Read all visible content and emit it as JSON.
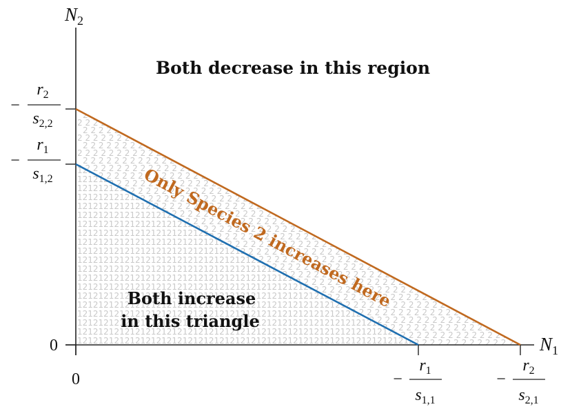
{
  "axes": {
    "x_label": "N",
    "x_label_sub": "1",
    "y_label": "N",
    "y_label_sub": "2"
  },
  "ticks": {
    "origin_x": "0",
    "origin_y": "0",
    "y_upper": {
      "sign": "−",
      "num": "r",
      "num_sub": "2",
      "den": "s",
      "den_sub": "2,2"
    },
    "y_lower": {
      "sign": "−",
      "num": "r",
      "num_sub": "1",
      "den": "s",
      "den_sub": "1,2"
    },
    "x_near": {
      "sign": "−",
      "num": "r",
      "num_sub": "1",
      "den": "s",
      "den_sub": "1,1"
    },
    "x_far": {
      "sign": "−",
      "num": "r",
      "num_sub": "2",
      "den": "s",
      "den_sub": "2,1"
    }
  },
  "regions": {
    "top": "Both decrease in this region",
    "middle": "Only Species 2 increases here",
    "bottom_line1": "Both increase",
    "bottom_line2": "in this triangle"
  },
  "pattern": {
    "region_both_text": "12",
    "region_species2_text": "2"
  },
  "colors": {
    "species1_line": "#1f6fb0",
    "species2_line": "#c0691f",
    "pattern_text": "#c9c9c9",
    "middle_label": "#c0691f",
    "axis": "#222222"
  }
}
